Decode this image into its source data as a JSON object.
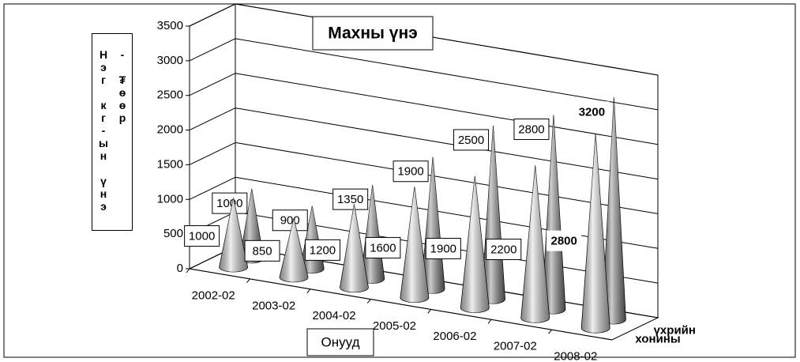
{
  "chart_data": {
    "type": "cone3d",
    "title": "Махны үнэ",
    "xlabel": "Онууд",
    "ylabel": "Нэг кг-ын үнэ - ₮өөр",
    "categories": [
      "2002-02",
      "2003-02",
      "2004-02",
      "2005-02",
      "2006-02",
      "2007-02",
      "2008-02"
    ],
    "series": [
      {
        "name": "хонины",
        "color": "#d9d9d9",
        "values": [
          1000,
          850,
          1200,
          1600,
          1900,
          2200,
          2800
        ]
      },
      {
        "name": "үхрийн",
        "color": "#7f7f7f",
        "values": [
          1000,
          900,
          1350,
          1900,
          2500,
          2800,
          3200
        ]
      }
    ],
    "ylim": [
      0,
      3500
    ],
    "yticks": [
      0,
      500,
      1000,
      1500,
      2000,
      2500,
      3000,
      3500
    ],
    "grid": true
  }
}
